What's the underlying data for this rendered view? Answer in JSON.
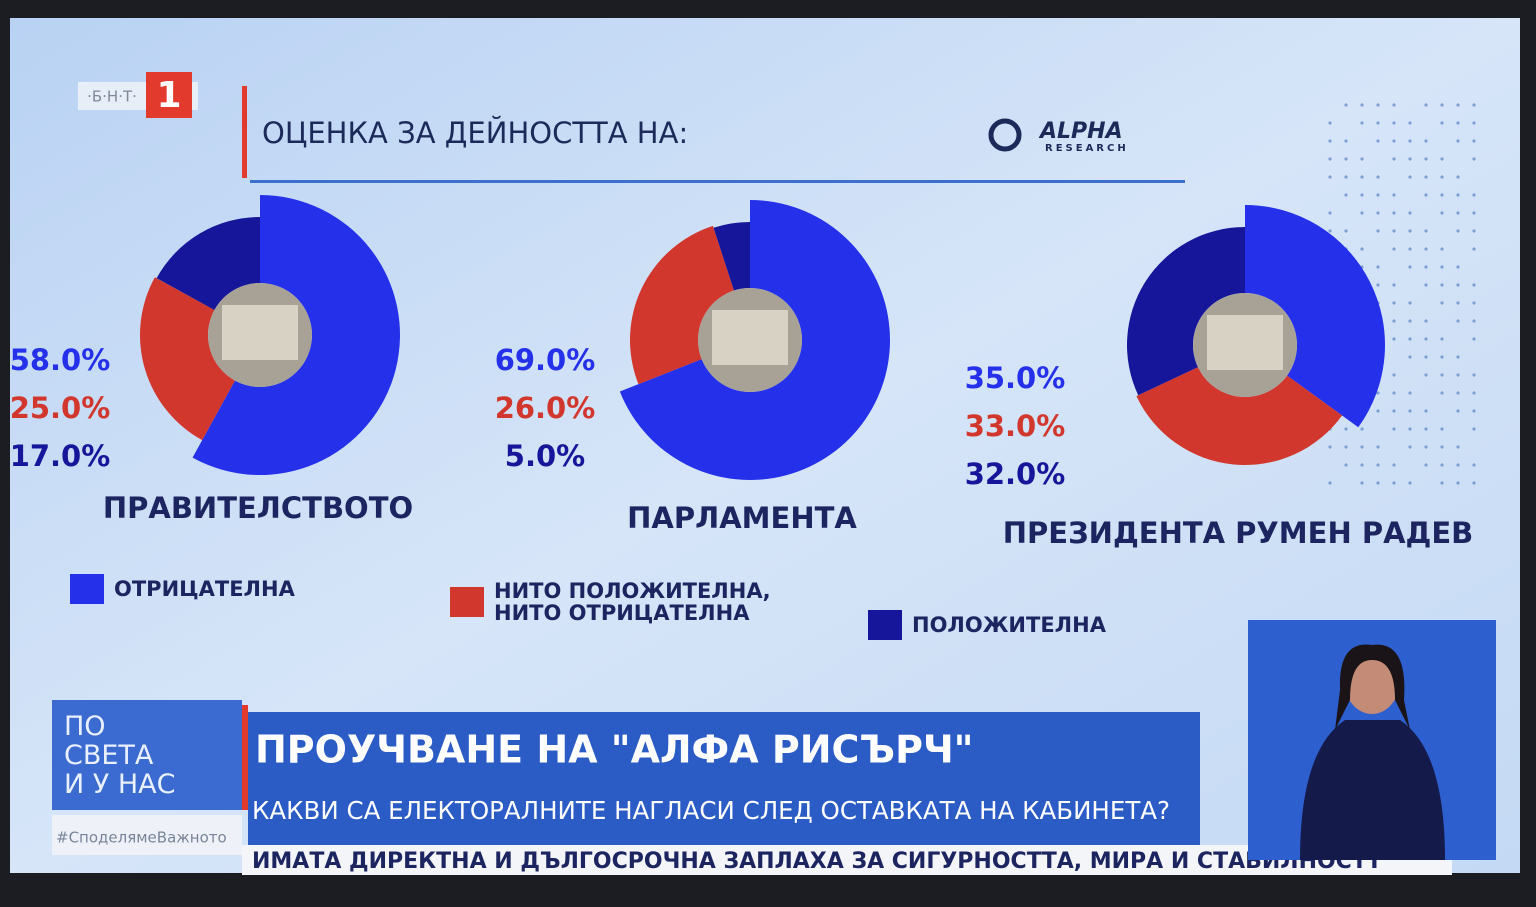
{
  "header": {
    "channel": "·Б·Н·Т·",
    "channel_number": "1",
    "title": "ОЦЕНКА ЗА ДЕЙНОСТТА НА:",
    "source": "ALPHA",
    "source_sub": "RESEARCH"
  },
  "chart_data": {
    "type": "pie",
    "categories": [
      "ОТРИЦАТЕЛНА",
      "НИТО ПОЛОЖИТЕЛНА, НИТО ОТРИЦАТЕЛНА",
      "ПОЛОЖИТЕЛНА"
    ],
    "colors": [
      "#2430ea",
      "#d2372d",
      "#16169a"
    ],
    "series": [
      {
        "name": "ПРАВИТЕЛСТВОТО",
        "values": [
          58,
          25,
          17
        ],
        "value_labels": [
          "58.0%",
          "25.0%",
          "17.0%"
        ]
      },
      {
        "name": "ПАРЛАМЕНТА",
        "values": [
          69,
          26,
          5
        ],
        "value_labels": [
          "69.0%",
          "26.0%",
          "5.0%"
        ]
      },
      {
        "name": "ПРЕЗИДЕНТА РУМЕН РАДЕВ",
        "values": [
          35,
          33,
          32
        ],
        "value_labels": [
          "35.0%",
          "33.0%",
          "32.0%"
        ]
      }
    ]
  },
  "banner": {
    "show_lines": [
      "ПО",
      "СВЕТА",
      "И У НАС"
    ],
    "headline": "ПРОУЧВАНЕ НА \"АЛФА РИСЪРЧ\"",
    "subheadline": "КАКВИ СА ЕЛЕКТОРАЛНИТЕ НАГЛАСИ СЛЕД ОСТАВКАТА НА КАБИНЕТА?",
    "hashtag": "#СподелямеВажното",
    "ticker": "ИМАТА ДИРЕКТНА И ДЪЛГОСРОЧНА ЗАПЛАХА ЗА СИГУРНОСТТА, МИРА И СТАБИЛНОСТТ"
  }
}
